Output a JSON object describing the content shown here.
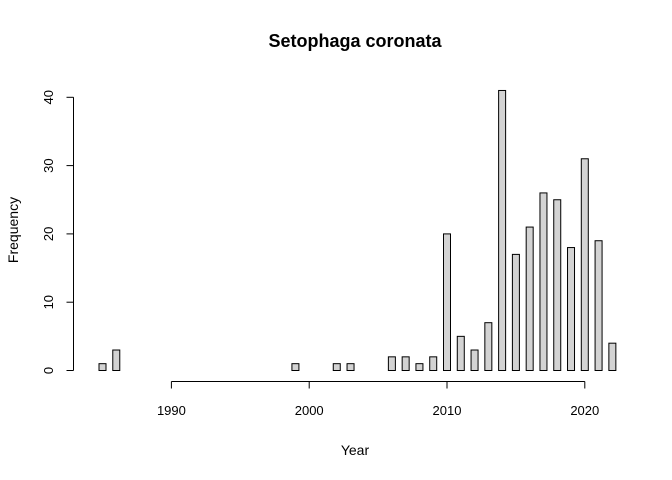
{
  "chart_data": {
    "type": "bar",
    "title": "Setophaga coronata",
    "xlabel": "Year",
    "ylabel": "Frequency",
    "x": [
      1985,
      1986,
      1987,
      1988,
      1989,
      1990,
      1991,
      1992,
      1993,
      1994,
      1995,
      1996,
      1997,
      1998,
      1999,
      2000,
      2001,
      2002,
      2003,
      2004,
      2005,
      2006,
      2007,
      2008,
      2009,
      2010,
      2011,
      2012,
      2013,
      2014,
      2015,
      2016,
      2017,
      2018,
      2019,
      2020,
      2021,
      2022
    ],
    "values": [
      1,
      3,
      0,
      0,
      0,
      0,
      0,
      0,
      0,
      0,
      0,
      0,
      0,
      0,
      1,
      0,
      0,
      1,
      1,
      0,
      0,
      2,
      2,
      1,
      2,
      20,
      5,
      3,
      7,
      41,
      17,
      21,
      26,
      25,
      18,
      31,
      19,
      4
    ],
    "xticks": [
      1990,
      2000,
      2010,
      2020
    ],
    "yticks": [
      0,
      10,
      20,
      30,
      40
    ],
    "xlim": [
      1985,
      2022
    ],
    "ylim": [
      0,
      41
    ],
    "grid": false,
    "bar_color": "#d3d3d3"
  }
}
